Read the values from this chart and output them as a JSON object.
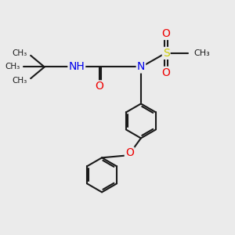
{
  "bg_color": "#ebebeb",
  "bond_color": "#1a1a1a",
  "bond_width": 1.5,
  "atom_colors": {
    "N": "#0000ee",
    "O": "#ee0000",
    "S": "#cccc00",
    "H": "#2a8a2a",
    "C": "#1a1a1a"
  },
  "xlim": [
    0,
    10
  ],
  "ylim": [
    0,
    10
  ],
  "figsize": [
    3.0,
    3.0
  ],
  "dpi": 100
}
